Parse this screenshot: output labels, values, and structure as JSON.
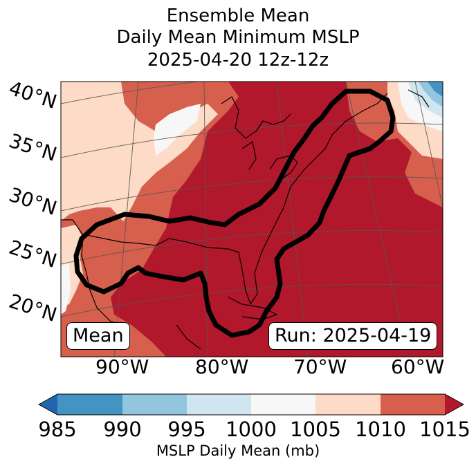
{
  "title": {
    "line1": "Ensemble Mean",
    "line2": "Daily Mean Minimum MSLP",
    "line3": "2025-04-20 12z-12z"
  },
  "map": {
    "latitude_labels": [
      "40°N",
      "35°N",
      "30°N",
      "25°N",
      "20°N"
    ],
    "longitude_labels": [
      "90°W",
      "80°W",
      "70°W",
      "60°W"
    ],
    "left_box": "Mean",
    "right_box": "Run: 2025-04-19"
  },
  "colorbar": {
    "label": "MSLP Daily Mean (mb)",
    "ticks": [
      "985",
      "990",
      "995",
      "1000",
      "1005",
      "1010",
      "1015"
    ],
    "colors": {
      "below": "#2166ac",
      "985_990": "#4393c3",
      "990_995": "#92c5de",
      "995_1000": "#d1e5f0",
      "1000_1005": "#f7f7f7",
      "1005_1010": "#fddbc7",
      "1010_1015": "#d6604d",
      "above": "#b2182b"
    }
  }
}
